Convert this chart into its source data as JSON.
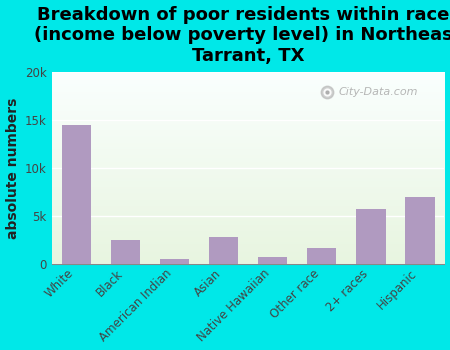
{
  "title": "Breakdown of poor residents within races\n(income below poverty level) in Northeast\nTarrant, TX",
  "categories": [
    "White",
    "Black",
    "American Indian",
    "Asian",
    "Native Hawaiian",
    "Other race",
    "2+ races",
    "Hispanic"
  ],
  "values": [
    14500,
    2500,
    500,
    2800,
    800,
    1700,
    5800,
    7000
  ],
  "bar_color": "#b09ac0",
  "background_outer": "#00e8e8",
  "background_inner_top": "#f5fff5",
  "background_inner_bottom": "#e8f5e0",
  "ylabel": "absolute numbers",
  "ylim": [
    0,
    20000
  ],
  "yticks": [
    0,
    5000,
    10000,
    15000,
    20000
  ],
  "ytick_labels": [
    "0",
    "5k",
    "10k",
    "15k",
    "20k"
  ],
  "watermark": "City-Data.com",
  "title_fontsize": 13,
  "ylabel_fontsize": 10,
  "tick_fontsize": 8.5
}
